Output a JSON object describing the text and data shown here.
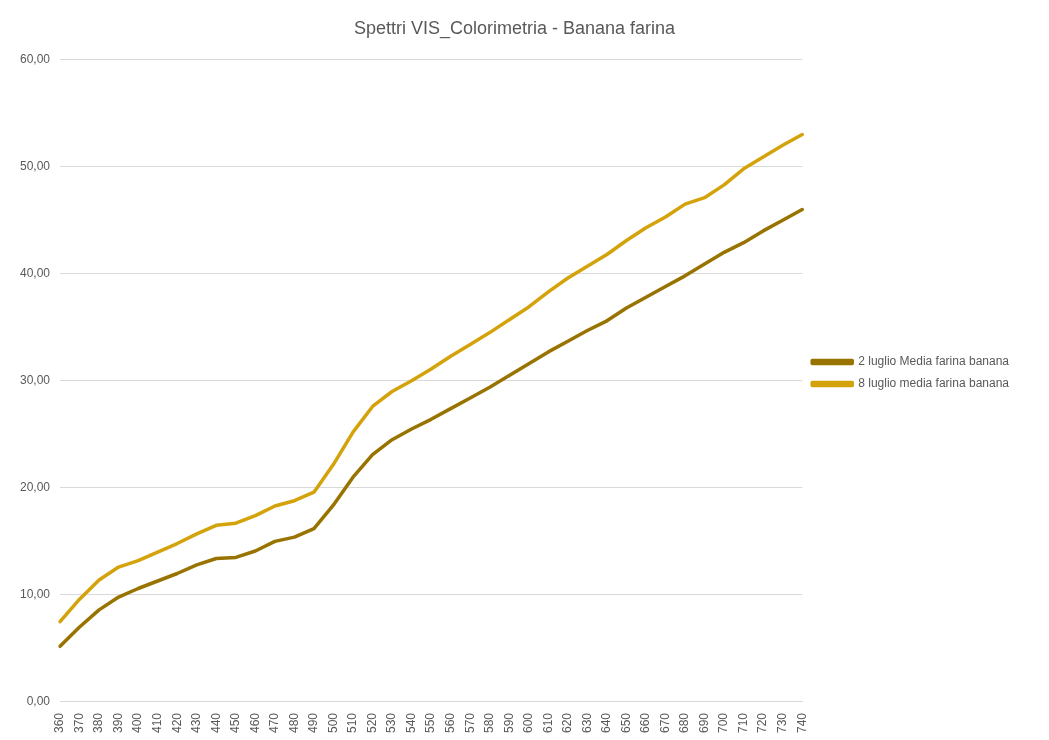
{
  "chart_data": {
    "type": "line",
    "title": "Spettri VIS_Colorimetria - Banana farina",
    "categories": [
      "360",
      "370",
      "380",
      "390",
      "400",
      "410",
      "420",
      "430",
      "440",
      "450",
      "460",
      "470",
      "480",
      "490",
      "500",
      "510",
      "520",
      "530",
      "540",
      "550",
      "560",
      "570",
      "580",
      "590",
      "600",
      "610",
      "620",
      "630",
      "640",
      "650",
      "660",
      "670",
      "680",
      "690",
      "700",
      "710",
      "720",
      "730",
      "740"
    ],
    "series": [
      {
        "name": "2 luglio Media farina banana",
        "color": "#997300",
        "values": [
          5.2,
          7.0,
          8.6,
          9.8,
          10.6,
          11.3,
          12.0,
          12.8,
          13.4,
          13.5,
          14.1,
          15.0,
          15.4,
          16.2,
          18.4,
          21.0,
          23.1,
          24.5,
          25.5,
          26.4,
          27.4,
          28.4,
          29.4,
          30.5,
          31.6,
          32.7,
          33.7,
          34.7,
          35.6,
          36.8,
          37.8,
          38.8,
          39.8,
          40.9,
          42.0,
          42.9,
          44.0,
          45.0,
          46.0
        ]
      },
      {
        "name": "8 luglio media farina banana",
        "color": "#d4a20a",
        "values": [
          7.5,
          9.6,
          11.4,
          12.6,
          13.2,
          14.0,
          14.8,
          15.7,
          16.5,
          16.7,
          17.4,
          18.3,
          18.8,
          19.6,
          22.2,
          25.2,
          27.6,
          29.0,
          30.0,
          31.1,
          32.3,
          33.4,
          34.5,
          35.7,
          36.9,
          38.3,
          39.6,
          40.7,
          41.8,
          43.1,
          44.3,
          45.3,
          46.5,
          47.1,
          48.3,
          49.8,
          50.9,
          52.0,
          53.0
        ]
      }
    ],
    "ylim": [
      0,
      60
    ],
    "yticks": [
      {
        "value": 0,
        "label": "0,00"
      },
      {
        "value": 10,
        "label": "10,00"
      },
      {
        "value": 20,
        "label": "20,00"
      },
      {
        "value": 30,
        "label": "30,00"
      },
      {
        "value": 40,
        "label": "40,00"
      },
      {
        "value": 50,
        "label": "50,00"
      },
      {
        "value": 60,
        "label": "60,00"
      }
    ],
    "grid": "y",
    "legend": "right",
    "marker": "none",
    "line_style": "solid"
  }
}
